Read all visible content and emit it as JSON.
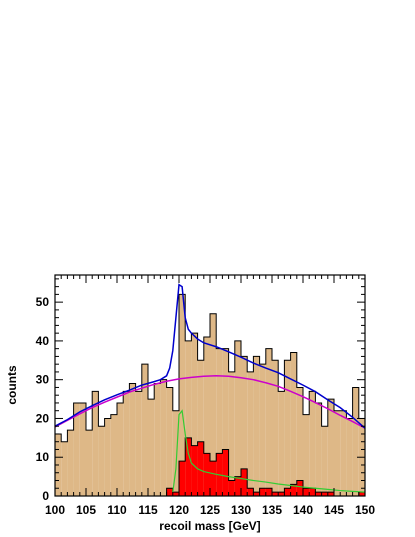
{
  "chart_data": {
    "type": "bar",
    "title": "",
    "xlabel": "recoil mass [GeV]",
    "ylabel": "counts",
    "xlim": [
      100,
      150
    ],
    "ylim": [
      0,
      57
    ],
    "grid": false,
    "xticks": [
      "100",
      "105",
      "110",
      "115",
      "120",
      "125",
      "130",
      "135",
      "140",
      "145",
      "150"
    ],
    "yticks": [
      "0",
      "10",
      "20",
      "30",
      "40",
      "50"
    ],
    "bin_width": 1,
    "bin_edges_start": [
      100,
      101,
      102,
      103,
      104,
      105,
      106,
      107,
      108,
      109,
      110,
      111,
      112,
      113,
      114,
      115,
      116,
      117,
      118,
      119,
      120,
      121,
      122,
      123,
      124,
      125,
      126,
      127,
      128,
      129,
      130,
      131,
      132,
      133,
      134,
      135,
      136,
      137,
      138,
      139,
      140,
      141,
      142,
      143,
      144,
      145,
      146,
      147,
      148,
      149
    ],
    "series": [
      {
        "kind": "histogram-total",
        "fill": "#deb887",
        "stroke": "#000000",
        "values": [
          16,
          14,
          17,
          24,
          24,
          17,
          27,
          18,
          20,
          21,
          24,
          27,
          29,
          27,
          34,
          25,
          29,
          30,
          28,
          22,
          52,
          40,
          42,
          35,
          41,
          47,
          38,
          38,
          32,
          40,
          36,
          32,
          36,
          34,
          38,
          35,
          27,
          35,
          37,
          28,
          21,
          27,
          24,
          18,
          25,
          22,
          22,
          20,
          28,
          20
        ]
      },
      {
        "kind": "histogram-signal",
        "fill": "#ff0000",
        "stroke": "#000000",
        "values": [
          0,
          0,
          0,
          0,
          0,
          0,
          0,
          0,
          0,
          0,
          0,
          0,
          0,
          0,
          0,
          0,
          0,
          0,
          2,
          1,
          9,
          15,
          13,
          14,
          11,
          9,
          11,
          12,
          4,
          5,
          7,
          2,
          1,
          2,
          2,
          1,
          1,
          2,
          3,
          4,
          2,
          2,
          1,
          1,
          1,
          0,
          0,
          0,
          0,
          1
        ]
      },
      {
        "kind": "fit-total",
        "color": "#0000cc",
        "x": [
          100,
          102,
          104,
          106,
          108,
          110,
          112,
          114,
          116,
          117,
          118,
          118.5,
          119,
          119.5,
          120,
          120.5,
          121,
          121.5,
          122,
          123,
          124,
          126,
          128,
          130,
          132,
          134,
          136,
          138,
          140,
          142,
          144,
          146,
          148,
          150
        ],
        "y": [
          18,
          19.7,
          21.7,
          23.3,
          24.8,
          26.1,
          27.3,
          28.6,
          29.5,
          30,
          31,
          33,
          37.5,
          46,
          54.5,
          54,
          46,
          43,
          42,
          40.5,
          39.5,
          38.5,
          37.2,
          35.8,
          34.3,
          33,
          31.8,
          30.2,
          28.6,
          26.9,
          24.8,
          22.8,
          20.3,
          17.5
        ]
      },
      {
        "kind": "fit-background",
        "color": "#cc00cc",
        "x": [
          100,
          102,
          104,
          106,
          108,
          110,
          112,
          114,
          116,
          118,
          120,
          122,
          124,
          126,
          128,
          130,
          132,
          134,
          136,
          138,
          140,
          142,
          144,
          146,
          148,
          150
        ],
        "y": [
          17.8,
          19.5,
          21.2,
          22.8,
          24.2,
          25.5,
          26.8,
          27.8,
          28.8,
          29.6,
          30.2,
          30.6,
          30.9,
          31,
          30.9,
          30.5,
          30,
          29.2,
          28.3,
          27,
          25.6,
          24.1,
          22.5,
          20.8,
          19.2,
          17.5
        ]
      },
      {
        "kind": "fit-signal",
        "color": "#33cc33",
        "x": [
          119,
          119.5,
          120,
          120.5,
          121,
          121.5,
          122,
          123,
          124,
          126,
          128,
          130,
          132,
          134,
          136,
          138,
          140,
          142,
          144,
          146,
          148,
          150
        ],
        "y": [
          1,
          7,
          21,
          22,
          16,
          11,
          8.5,
          7,
          6.3,
          5.6,
          5,
          4.5,
          4,
          3.6,
          3.1,
          2.7,
          2.3,
          2,
          1.7,
          1.4,
          1.2,
          1
        ]
      }
    ]
  }
}
